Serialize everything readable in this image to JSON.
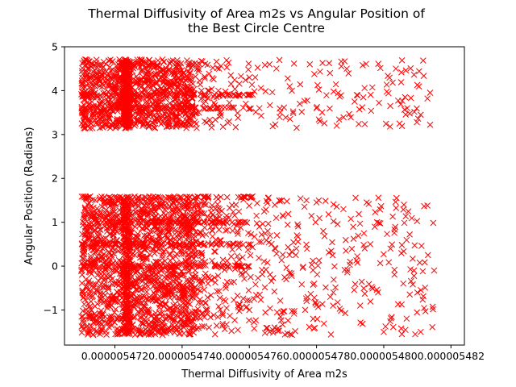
{
  "chart_data": {
    "type": "scatter",
    "title_line1": "Thermal Diffusivity of Area m2s vs Angular Position of",
    "title_line2": "the Best Circle Centre",
    "xlabel": "Thermal Diffusivity of Area m2s",
    "ylabel": "Angular Position (Radians)",
    "xlim": [
      5.4705e-06,
      5.4824e-06
    ],
    "ylim": [
      -1.8,
      5.0
    ],
    "x_ticks": [
      {
        "value": 5.472e-06,
        "label": "0.000005472"
      },
      {
        "value": 5.474e-06,
        "label": "0.000005474"
      },
      {
        "value": 5.476e-06,
        "label": "0.000005476"
      },
      {
        "value": 5.478e-06,
        "label": "0.000005478"
      },
      {
        "value": 5.48e-06,
        "label": "0.000005480"
      },
      {
        "value": 5.482e-06,
        "label": "0.000005482"
      }
    ],
    "y_ticks": [
      {
        "value": -1,
        "label": "−1"
      },
      {
        "value": 0,
        "label": "0"
      },
      {
        "value": 1,
        "label": "1"
      },
      {
        "value": 2,
        "label": "2"
      },
      {
        "value": 3,
        "label": "3"
      },
      {
        "value": 4,
        "label": "4"
      },
      {
        "value": 5,
        "label": "5"
      }
    ],
    "grid": false,
    "marker": "x",
    "color": "#ff0000",
    "bands": [
      {
        "name": "lower-band",
        "y_range": [
          -1.57,
          1.57
        ]
      },
      {
        "name": "upper-band",
        "y_range": [
          3.14,
          4.71
        ]
      }
    ],
    "x_dense_range": [
      5.471e-06,
      5.4743e-06
    ],
    "x_sparse_range": [
      5.4743e-06,
      5.4815e-06
    ],
    "dense_columns_x": [
      5.4723e-06,
      5.4724e-06
    ],
    "horizontal_streak_y": [
      0,
      0.5,
      1.0,
      1.57,
      3.6,
      3.9
    ],
    "points": [
      [
        5.4712e-06,
        -1.5
      ],
      [
        5.4715e-06,
        -1.3
      ],
      [
        5.4718e-06,
        -0.9
      ],
      [
        5.472e-06,
        -0.4
      ],
      [
        5.4722e-06,
        0.1
      ],
      [
        5.4724e-06,
        0.5
      ],
      [
        5.4726e-06,
        0.9
      ],
      [
        5.4728e-06,
        1.3
      ],
      [
        5.473e-06,
        -1.1
      ],
      [
        5.4732e-06,
        -0.2
      ],
      [
        5.4735e-06,
        0.7
      ],
      [
        5.4738e-06,
        1.5
      ],
      [
        5.4741e-06,
        -0.8
      ],
      [
        5.4744e-06,
        0.3
      ],
      [
        5.4746e-06,
        1.2
      ],
      [
        5.4748e-06,
        -1.4
      ],
      [
        5.475e-06,
        0.6
      ],
      [
        5.4753e-06,
        -0.5
      ],
      [
        5.4756e-06,
        1.4
      ],
      [
        5.4758e-06,
        0.2
      ],
      [
        5.476e-06,
        -1.0
      ],
      [
        5.4763e-06,
        0.9
      ],
      [
        5.4766e-06,
        -1.5
      ],
      [
        5.4768e-06,
        1.1
      ],
      [
        5.4771e-06,
        -0.3
      ],
      [
        5.4774e-06,
        0.4
      ],
      [
        5.4777e-06,
        1.5
      ],
      [
        5.4779e-06,
        -1.2
      ],
      [
        5.4782e-06,
        0.8
      ],
      [
        5.4785e-06,
        -0.6
      ],
      [
        5.4788e-06,
        1.3
      ],
      [
        5.479e-06,
        0.1
      ],
      [
        5.4793e-06,
        -0.9
      ],
      [
        5.4796e-06,
        0.5
      ],
      [
        5.4798e-06,
        1.0
      ],
      [
        5.48e-06,
        -1.5
      ],
      [
        5.4802e-06,
        0.4
      ],
      [
        5.4806e-06,
        1.4
      ],
      [
        5.4809e-06,
        -0.1
      ],
      [
        5.4811e-06,
        -1.5
      ],
      [
        5.4815e-06,
        -0.1
      ],
      [
        5.4813e-06,
        1.38
      ],
      [
        5.4712e-06,
        3.2
      ],
      [
        5.4715e-06,
        3.6
      ],
      [
        5.4718e-06,
        4.1
      ],
      [
        5.4721e-06,
        4.6
      ],
      [
        5.4724e-06,
        3.4
      ],
      [
        5.4727e-06,
        3.9
      ],
      [
        5.473e-06,
        4.4
      ],
      [
        5.4733e-06,
        3.3
      ],
      [
        5.4736e-06,
        4.2
      ],
      [
        5.4739e-06,
        3.7
      ],
      [
        5.4742e-06,
        4.6
      ],
      [
        5.4745e-06,
        3.5
      ],
      [
        5.4748e-06,
        4.0
      ],
      [
        5.4751e-06,
        4.5
      ],
      [
        5.4754e-06,
        3.3
      ],
      [
        5.4757e-06,
        3.9
      ],
      [
        5.476e-06,
        4.3
      ],
      [
        5.4763e-06,
        3.6
      ],
      [
        5.4766e-06,
        4.6
      ],
      [
        5.4769e-06,
        3.4
      ],
      [
        5.4772e-06,
        4.1
      ],
      [
        5.4775e-06,
        3.7
      ],
      [
        5.4778e-06,
        4.6
      ],
      [
        5.4781e-06,
        3.3
      ],
      [
        5.4784e-06,
        4.4
      ],
      [
        5.4786e-06,
        3.2
      ],
      [
        5.4789e-06,
        4.5
      ],
      [
        5.4792e-06,
        3.9
      ],
      [
        5.4807e-06,
        3.6
      ],
      [
        5.481e-06,
        4.13
      ],
      [
        5.4811e-06,
        3.45
      ],
      [
        5.4813e-06,
        3.82
      ]
    ]
  }
}
